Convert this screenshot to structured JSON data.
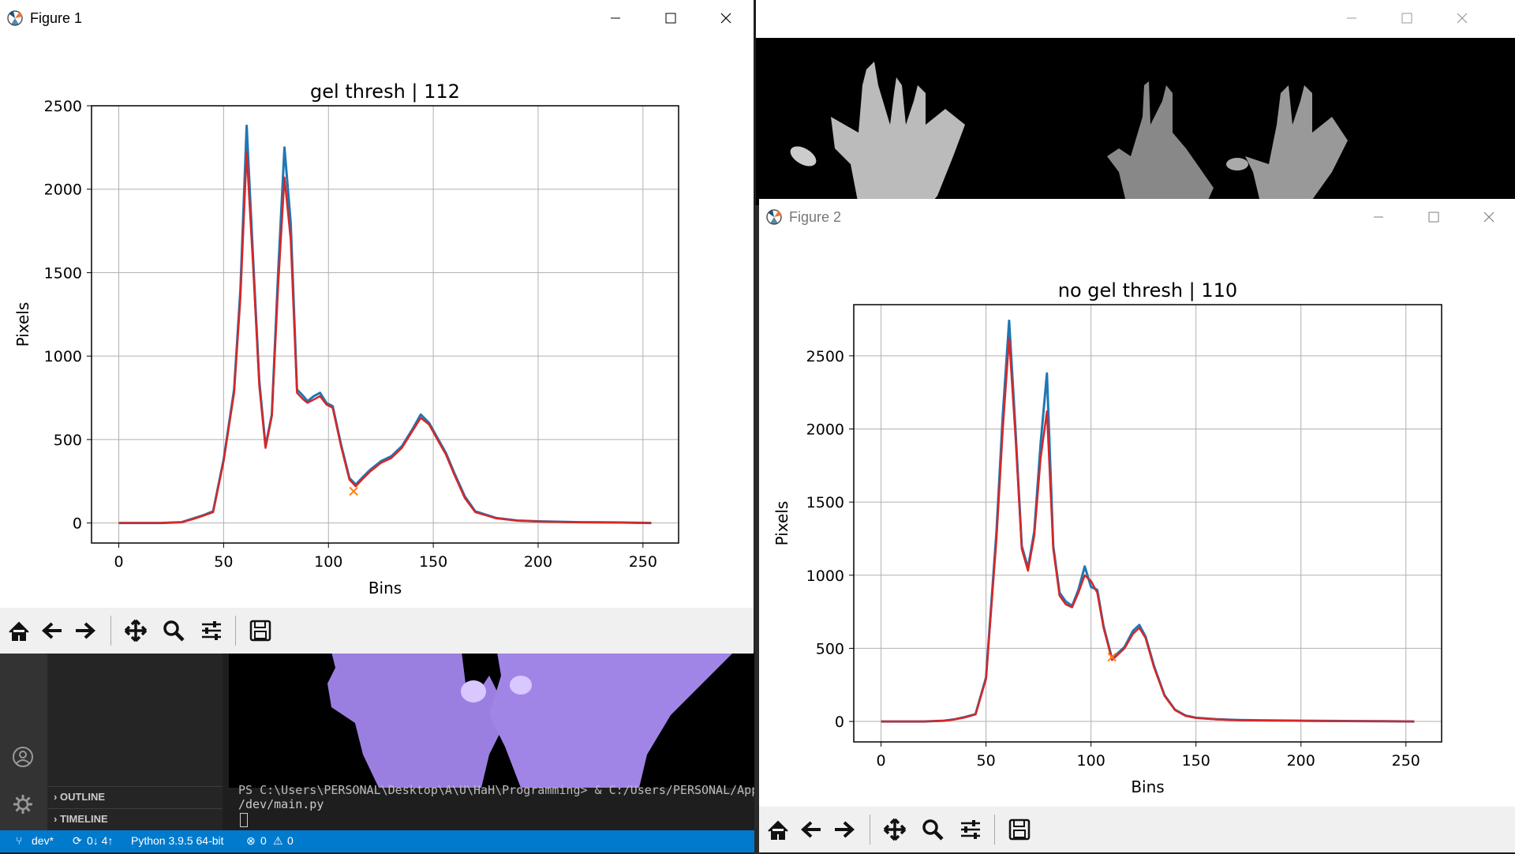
{
  "vscode": {
    "outline_label": "OUTLINE",
    "timeline_label": "TIMELINE",
    "terminal_line1": "PS C:\\Users\\PERSONAL\\Desktop\\A\\U\\HaH\\Programming> & C:/Users/PERSONAL/App",
    "terminal_line2": "/dev/main.py",
    "status": {
      "branch": "dev*",
      "sync": "0↓ 4↑",
      "python": "Python 3.9.5 64-bit",
      "errors": "0",
      "warnings": "0"
    }
  },
  "figure1": {
    "window_title": "Figure 1",
    "chart_data": {
      "type": "line",
      "title": "gel thresh | 112",
      "xlabel": "Bins",
      "ylabel": "Pixels",
      "xlim": [
        -13,
        267
      ],
      "ylim": [
        -120,
        2500
      ],
      "xticks": [
        0,
        50,
        100,
        150,
        200,
        250
      ],
      "yticks": [
        0,
        500,
        1000,
        1500,
        2000,
        2500
      ],
      "grid": true,
      "series": [
        {
          "color": "#1f77b4",
          "x": [
            0,
            20,
            30,
            35,
            40,
            45,
            50,
            55,
            58,
            61,
            64,
            67,
            70,
            73,
            76,
            79,
            82,
            85,
            88,
            90,
            93,
            96,
            99,
            102,
            106,
            110,
            113,
            116,
            120,
            125,
            130,
            135,
            140,
            144,
            148,
            152,
            156,
            160,
            165,
            170,
            180,
            190,
            200,
            220,
            240,
            254
          ],
          "y": [
            0,
            0,
            5,
            25,
            45,
            70,
            380,
            800,
            1400,
            2380,
            1600,
            850,
            460,
            650,
            1500,
            2250,
            1800,
            800,
            760,
            730,
            760,
            780,
            720,
            700,
            470,
            270,
            230,
            270,
            320,
            370,
            400,
            460,
            560,
            650,
            600,
            510,
            420,
            300,
            160,
            70,
            30,
            15,
            10,
            5,
            3,
            0
          ]
        },
        {
          "color": "#d62728",
          "x": [
            0,
            20,
            30,
            35,
            40,
            45,
            50,
            55,
            58,
            61,
            64,
            67,
            70,
            73,
            76,
            79,
            82,
            85,
            88,
            90,
            93,
            96,
            99,
            102,
            106,
            110,
            113,
            116,
            120,
            125,
            130,
            135,
            140,
            144,
            148,
            152,
            156,
            160,
            165,
            170,
            180,
            190,
            200,
            220,
            240,
            254
          ],
          "y": [
            0,
            0,
            5,
            22,
            42,
            65,
            370,
            780,
            1350,
            2220,
            1550,
            820,
            450,
            640,
            1420,
            2070,
            1700,
            780,
            740,
            720,
            740,
            760,
            710,
            690,
            460,
            260,
            220,
            260,
            310,
            360,
            390,
            450,
            550,
            630,
            590,
            500,
            410,
            290,
            150,
            65,
            28,
            14,
            9,
            4,
            2,
            0
          ]
        }
      ],
      "marker": {
        "x": 112,
        "y": 190,
        "color": "#ff7f0e"
      }
    }
  },
  "figure2": {
    "window_title": "Figure 2",
    "chart_data": {
      "type": "line",
      "title": "no gel thresh | 110",
      "xlabel": "Bins",
      "ylabel": "Pixels",
      "xlim": [
        -13,
        267
      ],
      "ylim": [
        -140,
        2850
      ],
      "xticks": [
        0,
        50,
        100,
        150,
        200,
        250
      ],
      "yticks": [
        0,
        500,
        1000,
        1500,
        2000,
        2500
      ],
      "grid": true,
      "series": [
        {
          "color": "#1f77b4",
          "x": [
            0,
            20,
            30,
            35,
            40,
            45,
            50,
            55,
            58,
            61,
            64,
            67,
            70,
            73,
            76,
            79,
            82,
            85,
            88,
            91,
            94,
            97,
            100,
            103,
            106,
            110,
            113,
            116,
            120,
            123,
            126,
            130,
            135,
            140,
            145,
            150,
            160,
            170,
            180,
            200,
            220,
            240,
            254
          ],
          "y": [
            0,
            0,
            5,
            15,
            30,
            50,
            300,
            1300,
            2100,
            2740,
            2000,
            1200,
            1050,
            1300,
            1900,
            2380,
            1200,
            880,
            820,
            790,
            900,
            1060,
            920,
            900,
            650,
            430,
            470,
            510,
            620,
            660,
            580,
            380,
            180,
            80,
            40,
            25,
            15,
            10,
            8,
            5,
            3,
            2,
            0
          ]
        },
        {
          "color": "#d62728",
          "x": [
            0,
            20,
            30,
            35,
            40,
            45,
            50,
            55,
            58,
            61,
            64,
            67,
            70,
            73,
            76,
            79,
            82,
            85,
            88,
            91,
            94,
            97,
            100,
            103,
            106,
            110,
            113,
            116,
            120,
            123,
            126,
            130,
            135,
            140,
            145,
            150,
            160,
            170,
            180,
            200,
            220,
            240,
            254
          ],
          "y": [
            0,
            0,
            5,
            14,
            28,
            48,
            290,
            1250,
            2000,
            2620,
            1950,
            1180,
            1030,
            1270,
            1800,
            2120,
            1180,
            860,
            800,
            780,
            880,
            1000,
            960,
            880,
            640,
            420,
            460,
            500,
            600,
            640,
            570,
            370,
            175,
            78,
            38,
            24,
            14,
            9,
            7,
            4,
            2,
            1,
            0
          ]
        }
      ],
      "marker": {
        "x": 110,
        "y": 440,
        "color": "#ff7f0e"
      }
    }
  },
  "colors": {
    "vs_status": "#007acc",
    "hand_purple": "#9b7fe0"
  }
}
